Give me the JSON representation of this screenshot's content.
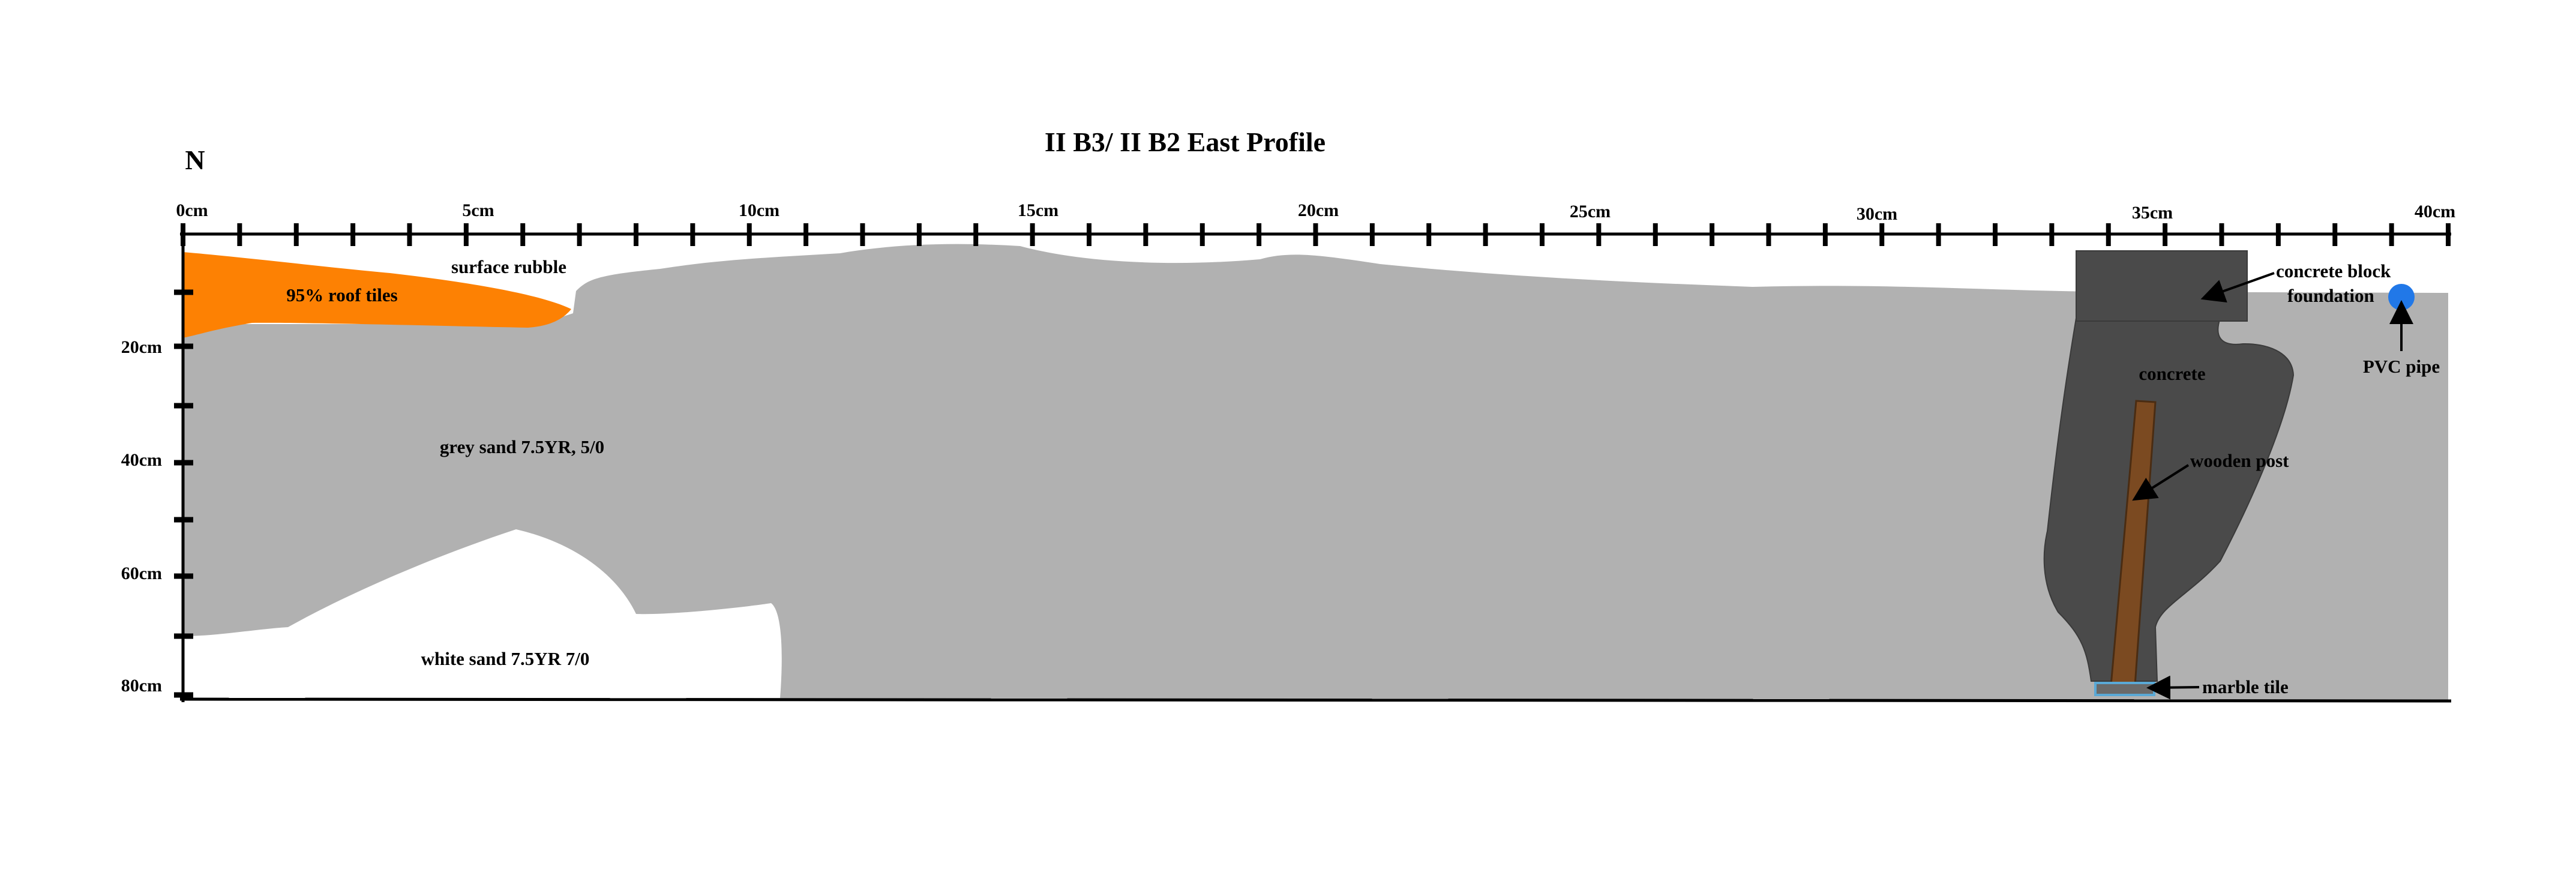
{
  "title": "II B3/ II B2 East Profile",
  "north_label": "N",
  "horizontal_scale": {
    "labels": [
      "0cm",
      "5cm",
      "10cm",
      "15cm",
      "20cm",
      "25cm",
      "30cm",
      "35cm",
      "40cm"
    ]
  },
  "vertical_scale": {
    "labels": [
      "20cm",
      "40cm",
      "60cm",
      "80cm"
    ]
  },
  "layers": {
    "roof_tiles": "95% roof tiles",
    "surface_rubble": "surface rubble",
    "grey_sand": "grey sand 7.5YR, 5/0",
    "white_sand": "white sand 7.5YR 7/0"
  },
  "features": {
    "concrete_block": [
      "concrete block",
      "foundation"
    ],
    "pvc_pipe": "PVC pipe",
    "concrete": "concrete",
    "wooden_post": "wooden post",
    "marble_tile": "marble tile"
  },
  "colors": {
    "grey_sand": "#b1b1b1",
    "roof_tiles": "#fd8103",
    "concrete": "#4a4a4a",
    "wooden_post": "#7b4a21",
    "pvc_pipe": "#2178e8",
    "marble_tile": "#5aa9d6"
  }
}
